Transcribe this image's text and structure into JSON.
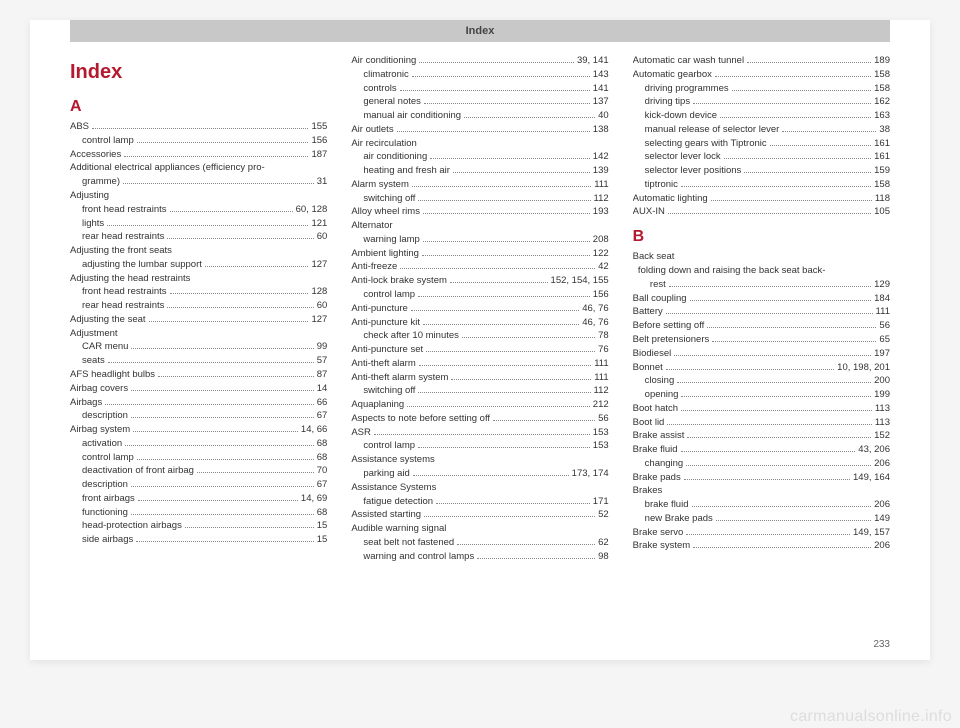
{
  "header": "Index",
  "page_number": "233",
  "watermark": "carmanualsonline.info",
  "title": "Index",
  "colors": {
    "accent": "#b5192e",
    "header_bg": "#c8c8c8",
    "text": "#333333",
    "dots": "#888888",
    "page_bg": "#ffffff",
    "body_bg": "#f5f5f5",
    "watermark": "#dddddd"
  },
  "columns": [
    {
      "blocks": [
        {
          "type": "title",
          "text": "Index"
        },
        {
          "type": "letter",
          "text": "A"
        },
        {
          "type": "entry",
          "label": "ABS",
          "page": "155"
        },
        {
          "type": "sub",
          "label": "control lamp",
          "page": "156"
        },
        {
          "type": "entry",
          "label": "Accessories",
          "page": "187"
        },
        {
          "type": "header",
          "label": "Additional electrical appliances (efficiency pro-"
        },
        {
          "type": "sub",
          "label": "gramme)",
          "page": "31"
        },
        {
          "type": "header",
          "label": "Adjusting"
        },
        {
          "type": "sub",
          "label": "front head restraints",
          "page": "60, 128"
        },
        {
          "type": "sub",
          "label": "lights",
          "page": "121"
        },
        {
          "type": "sub",
          "label": "rear head restraints",
          "page": "60"
        },
        {
          "type": "header",
          "label": "Adjusting the front seats"
        },
        {
          "type": "sub",
          "label": "adjusting the lumbar support",
          "page": "127"
        },
        {
          "type": "header",
          "label": "Adjusting the head restraints"
        },
        {
          "type": "sub",
          "label": "front head restraints",
          "page": "128"
        },
        {
          "type": "sub",
          "label": "rear head restraints",
          "page": "60"
        },
        {
          "type": "entry",
          "label": "Adjusting the seat",
          "page": "127"
        },
        {
          "type": "header",
          "label": "Adjustment"
        },
        {
          "type": "sub",
          "label": "CAR menu",
          "page": "99"
        },
        {
          "type": "sub",
          "label": "seats",
          "page": "57"
        },
        {
          "type": "entry",
          "label": "AFS headlight bulbs",
          "page": "87"
        },
        {
          "type": "entry",
          "label": "Airbag covers",
          "page": "14"
        },
        {
          "type": "entry",
          "label": "Airbags",
          "page": "66"
        },
        {
          "type": "sub",
          "label": "description",
          "page": "67"
        },
        {
          "type": "entry",
          "label": "Airbag system",
          "page": "14, 66"
        },
        {
          "type": "sub",
          "label": "activation",
          "page": "68"
        },
        {
          "type": "sub",
          "label": "control lamp",
          "page": "68"
        },
        {
          "type": "sub",
          "label": "deactivation of front airbag",
          "page": "70"
        },
        {
          "type": "sub",
          "label": "description",
          "page": "67"
        },
        {
          "type": "sub",
          "label": "front airbags",
          "page": "14, 69"
        },
        {
          "type": "sub",
          "label": "functioning",
          "page": "68"
        },
        {
          "type": "sub",
          "label": "head-protection airbags",
          "page": "15"
        },
        {
          "type": "sub",
          "label": "side airbags",
          "page": "15"
        }
      ]
    },
    {
      "blocks": [
        {
          "type": "entry",
          "label": "Air conditioning",
          "page": "39, 141"
        },
        {
          "type": "sub",
          "label": "climatronic",
          "page": "143"
        },
        {
          "type": "sub",
          "label": "controls",
          "page": "141"
        },
        {
          "type": "sub",
          "label": "general notes",
          "page": "137"
        },
        {
          "type": "sub",
          "label": "manual air conditioning",
          "page": "40"
        },
        {
          "type": "entry",
          "label": "Air outlets",
          "page": "138"
        },
        {
          "type": "header",
          "label": "Air recirculation"
        },
        {
          "type": "sub",
          "label": "air conditioning",
          "page": "142"
        },
        {
          "type": "sub",
          "label": "heating and fresh air",
          "page": "139"
        },
        {
          "type": "entry",
          "label": "Alarm system",
          "page": "111"
        },
        {
          "type": "sub",
          "label": "switching off",
          "page": "112"
        },
        {
          "type": "entry",
          "label": "Alloy wheel rims",
          "page": "193"
        },
        {
          "type": "header",
          "label": "Alternator"
        },
        {
          "type": "sub",
          "label": "warning lamp",
          "page": "208"
        },
        {
          "type": "entry",
          "label": "Ambient lighting",
          "page": "122"
        },
        {
          "type": "entry",
          "label": "Anti-freeze",
          "page": "42"
        },
        {
          "type": "entry",
          "label": "Anti-lock brake system",
          "page": "152, 154, 155"
        },
        {
          "type": "sub",
          "label": "control lamp",
          "page": "156"
        },
        {
          "type": "entry",
          "label": "Anti-puncture",
          "page": "46, 76"
        },
        {
          "type": "entry",
          "label": "Anti-puncture kit",
          "page": "46, 76"
        },
        {
          "type": "sub",
          "label": "check after 10 minutes",
          "page": "78"
        },
        {
          "type": "entry",
          "label": "Anti-puncture set",
          "page": "76"
        },
        {
          "type": "entry",
          "label": "Anti-theft alarm",
          "page": "111"
        },
        {
          "type": "entry",
          "label": "Anti-theft alarm system",
          "page": "111"
        },
        {
          "type": "sub",
          "label": "switching off",
          "page": "112"
        },
        {
          "type": "entry",
          "label": "Aquaplaning",
          "page": "212"
        },
        {
          "type": "entry",
          "label": "Aspects to note before setting off",
          "page": "56"
        },
        {
          "type": "entry",
          "label": "ASR",
          "page": "153"
        },
        {
          "type": "sub",
          "label": "control lamp",
          "page": "153"
        },
        {
          "type": "header",
          "label": "Assistance systems"
        },
        {
          "type": "sub",
          "label": "parking aid",
          "page": "173, 174"
        },
        {
          "type": "header",
          "label": "Assistance Systems"
        },
        {
          "type": "sub",
          "label": "fatigue detection",
          "page": "171"
        },
        {
          "type": "entry",
          "label": "Assisted starting",
          "page": "52"
        },
        {
          "type": "header",
          "label": "Audible warning signal"
        },
        {
          "type": "sub",
          "label": "seat belt not fastened",
          "page": "62"
        },
        {
          "type": "sub",
          "label": "warning and control lamps",
          "page": "98"
        }
      ]
    },
    {
      "blocks": [
        {
          "type": "entry",
          "label": "Automatic car wash tunnel",
          "page": "189"
        },
        {
          "type": "entry",
          "label": "Automatic gearbox",
          "page": "158"
        },
        {
          "type": "sub",
          "label": "driving programmes",
          "page": "158"
        },
        {
          "type": "sub",
          "label": "driving tips",
          "page": "162"
        },
        {
          "type": "sub",
          "label": "kick-down device",
          "page": "163"
        },
        {
          "type": "sub",
          "label": "manual release of selector lever",
          "page": "38"
        },
        {
          "type": "sub",
          "label": "selecting gears with Tiptronic",
          "page": "161"
        },
        {
          "type": "sub",
          "label": "selector lever lock",
          "page": "161"
        },
        {
          "type": "sub",
          "label": "selector lever positions",
          "page": "159"
        },
        {
          "type": "sub",
          "label": "tiptronic",
          "page": "158"
        },
        {
          "type": "entry",
          "label": "Automatic lighting",
          "page": "118"
        },
        {
          "type": "entry",
          "label": "AUX-IN",
          "page": "105"
        },
        {
          "type": "letter",
          "text": "B"
        },
        {
          "type": "header",
          "label": "Back seat"
        },
        {
          "type": "header",
          "label": "  folding down and raising the back seat back-"
        },
        {
          "type": "sub",
          "label": "  rest",
          "page": "129"
        },
        {
          "type": "entry",
          "label": "Ball coupling",
          "page": "184"
        },
        {
          "type": "entry",
          "label": "Battery",
          "page": "111"
        },
        {
          "type": "entry",
          "label": "Before setting off",
          "page": "56"
        },
        {
          "type": "entry",
          "label": "Belt pretensioners",
          "page": "65"
        },
        {
          "type": "entry",
          "label": "Biodiesel",
          "page": "197"
        },
        {
          "type": "entry",
          "label": "Bonnet",
          "page": "10, 198, 201"
        },
        {
          "type": "sub",
          "label": "closing",
          "page": "200"
        },
        {
          "type": "sub",
          "label": "opening",
          "page": "199"
        },
        {
          "type": "entry",
          "label": "Boot hatch",
          "page": "113"
        },
        {
          "type": "entry",
          "label": "Boot lid",
          "page": "113"
        },
        {
          "type": "entry",
          "label": "Brake assist",
          "page": "152"
        },
        {
          "type": "entry",
          "label": "Brake fluid",
          "page": "43, 206"
        },
        {
          "type": "sub",
          "label": "changing",
          "page": "206"
        },
        {
          "type": "entry",
          "label": "Brake pads",
          "page": "149, 164"
        },
        {
          "type": "header",
          "label": "Brakes"
        },
        {
          "type": "sub",
          "label": "brake fluid",
          "page": "206"
        },
        {
          "type": "sub",
          "label": "new Brake pads",
          "page": "149"
        },
        {
          "type": "entry",
          "label": "Brake servo",
          "page": "149, 157"
        },
        {
          "type": "entry",
          "label": "Brake system",
          "page": "206"
        }
      ]
    }
  ]
}
